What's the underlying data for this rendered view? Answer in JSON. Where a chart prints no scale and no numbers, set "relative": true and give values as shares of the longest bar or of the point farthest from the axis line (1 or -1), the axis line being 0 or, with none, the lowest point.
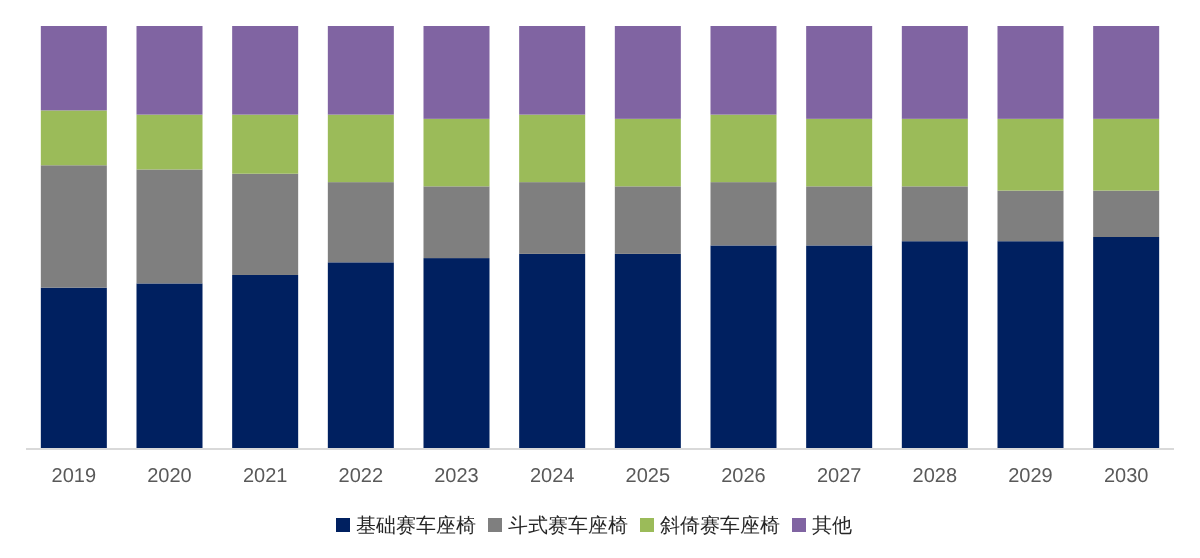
{
  "chart_data": {
    "type": "bar",
    "stacked": true,
    "relative": true,
    "legend": "bottom",
    "categories": [
      "2019",
      "2020",
      "2021",
      "2022",
      "2023",
      "2024",
      "2025",
      "2026",
      "2027",
      "2028",
      "2029",
      "2030"
    ],
    "series": [
      {
        "name": "基础赛车座椅",
        "color": "#002060",
        "values": [
          0.38,
          0.39,
          0.41,
          0.44,
          0.45,
          0.46,
          0.46,
          0.48,
          0.48,
          0.49,
          0.49,
          0.5
        ]
      },
      {
        "name": "斗式赛车座椅",
        "color": "#7f7f7f",
        "values": [
          0.29,
          0.27,
          0.24,
          0.19,
          0.17,
          0.17,
          0.16,
          0.15,
          0.14,
          0.13,
          0.12,
          0.11
        ]
      },
      {
        "name": "斜倚赛车座椅",
        "color": "#9bbb59",
        "values": [
          0.13,
          0.13,
          0.14,
          0.16,
          0.16,
          0.16,
          0.16,
          0.16,
          0.16,
          0.16,
          0.17,
          0.17
        ]
      },
      {
        "name": "其他",
        "color": "#8064a2",
        "values": [
          0.2,
          0.21,
          0.21,
          0.21,
          0.22,
          0.21,
          0.22,
          0.21,
          0.22,
          0.22,
          0.22,
          0.22
        ]
      }
    ]
  }
}
